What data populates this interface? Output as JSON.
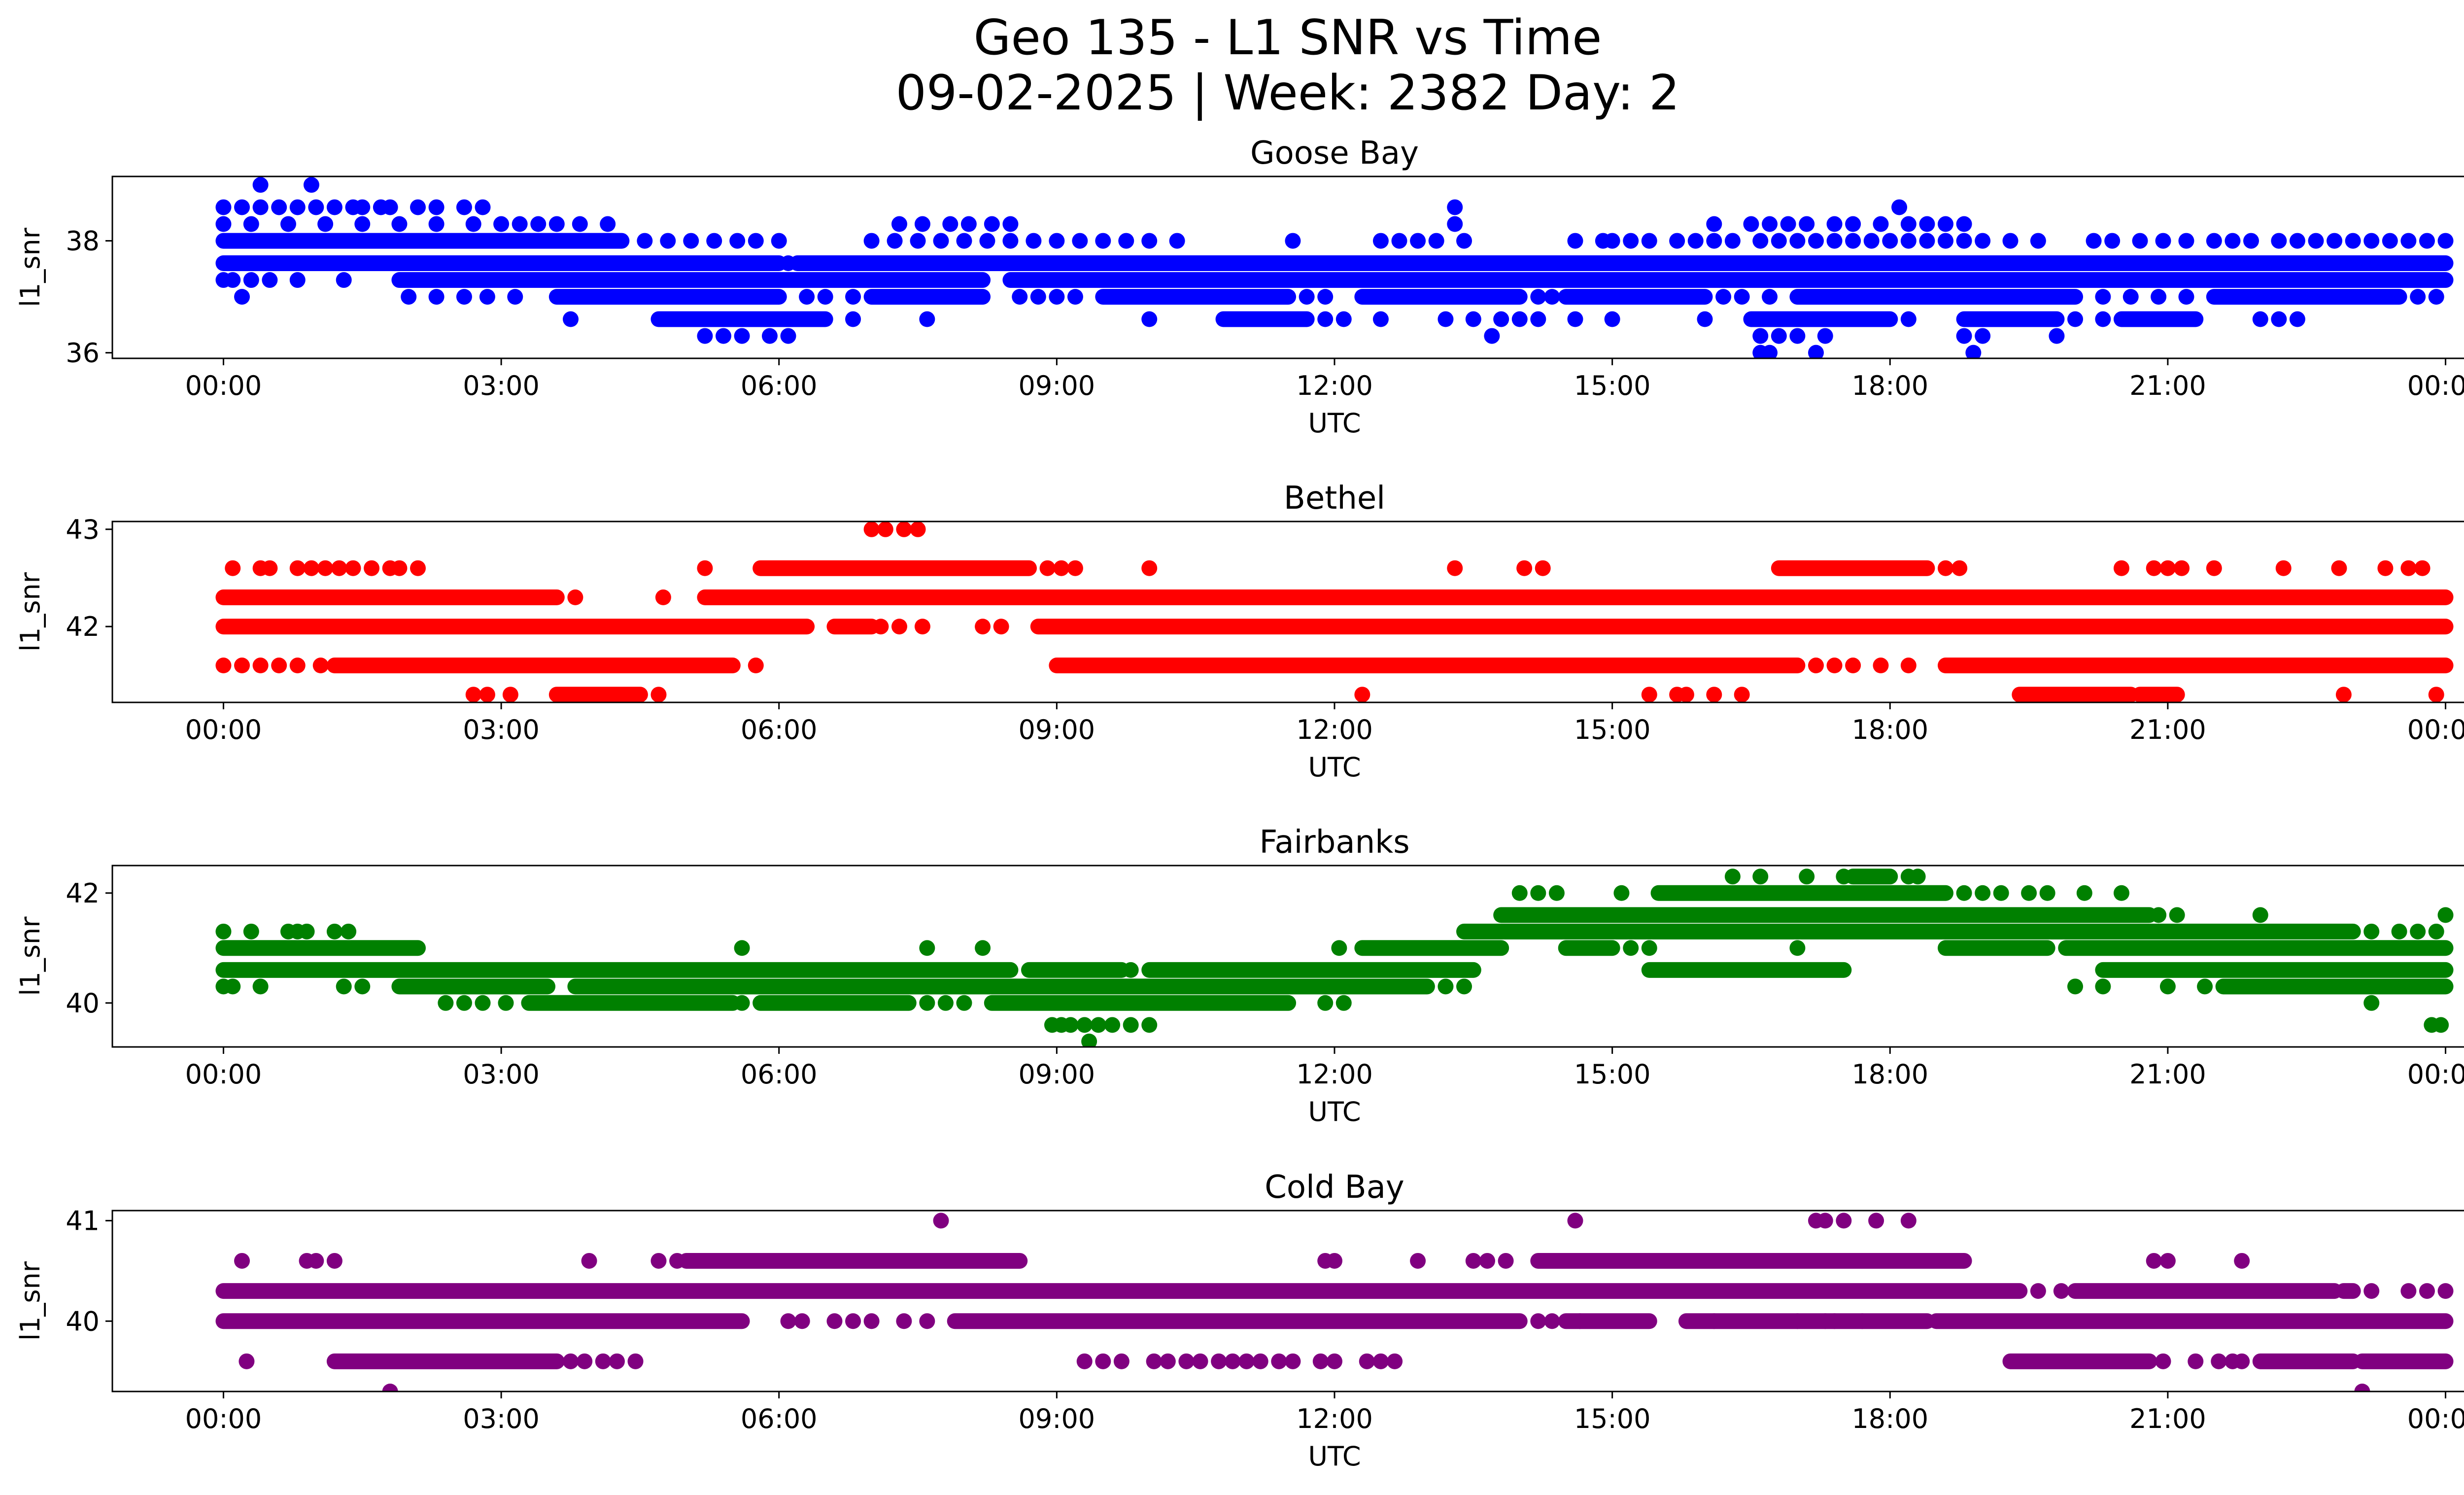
{
  "chart_data": {
    "type": "scatter",
    "title": "Geo 135 - L1 SNR vs Time",
    "subtitle": "09-02-2025 | Week: 2382 Day: 2",
    "xlabel": "UTC",
    "ylabel": "l1_snr",
    "x_unit": "hours",
    "xlim": [
      -1.2,
      25.2
    ],
    "xticks": [
      0,
      3,
      6,
      9,
      12,
      15,
      18,
      21,
      24
    ],
    "xtick_labels": [
      "00:00",
      "03:00",
      "06:00",
      "09:00",
      "12:00",
      "15:00",
      "18:00",
      "21:00",
      "00:00"
    ],
    "panels": [
      {
        "name": "Goose Bay",
        "color": "#0000ff",
        "ylim": [
          35.9,
          39.15
        ],
        "yticks": [
          36,
          38
        ],
        "series": [
          {
            "level": 39.0,
            "points": [
              0.4,
              0.95
            ]
          },
          {
            "level": 38.6,
            "points": [
              0.0,
              0.2,
              0.4,
              0.6,
              0.8,
              1.0,
              1.2,
              1.4,
              1.5,
              1.7,
              1.8,
              2.1,
              2.3,
              2.6,
              2.8,
              13.3,
              18.1
            ]
          },
          {
            "level": 38.3,
            "points": [
              0.0,
              0.3,
              0.7,
              1.1,
              1.5,
              1.9,
              2.3,
              2.7,
              3.0,
              3.2,
              3.4,
              3.6,
              3.85,
              4.15,
              7.3,
              7.55,
              7.85,
              8.05,
              8.3,
              8.5,
              13.3,
              16.1,
              16.5,
              16.7,
              16.9,
              17.1,
              17.4,
              17.6,
              17.9,
              18.2,
              18.4,
              18.6,
              18.8
            ]
          },
          {
            "level": 38.0,
            "ranges": [
              [
                0.0,
                4.3
              ]
            ],
            "points": [
              4.55,
              4.8,
              5.05,
              5.3,
              5.55,
              5.75,
              6.0,
              7.0,
              7.25,
              7.5,
              7.75,
              8.0,
              8.25,
              8.5,
              8.75,
              9.0,
              9.25,
              9.5,
              9.75,
              10.0,
              10.3,
              11.55,
              12.5,
              12.7,
              12.9,
              13.1,
              13.4,
              14.6,
              14.9,
              15.0,
              15.2,
              15.4,
              15.7,
              15.9,
              16.1,
              16.3,
              16.6,
              16.8,
              17.0,
              17.2,
              17.4,
              17.6,
              17.8,
              18.0,
              18.2,
              18.4,
              18.6,
              18.8,
              19.0,
              19.3,
              19.6,
              20.2,
              20.4,
              20.7,
              20.95,
              21.2,
              21.5,
              21.7,
              21.9,
              22.2,
              22.4,
              22.6,
              22.8,
              23.0,
              23.2,
              23.4,
              23.6,
              23.8,
              24.0
            ]
          },
          {
            "level": 37.6,
            "ranges": [
              [
                0.0,
                6.0
              ],
              [
                6.2,
                24.0
              ]
            ],
            "points": [
              6.1
            ]
          },
          {
            "level": 37.3,
            "ranges": [
              [
                1.9,
                8.2
              ],
              [
                8.5,
                24.0
              ]
            ],
            "points": [
              0.0,
              0.1,
              0.3,
              0.5,
              0.8,
              1.3
            ]
          },
          {
            "level": 37.0,
            "ranges": [
              [
                3.6,
                6.0
              ],
              [
                7.0,
                8.2
              ],
              [
                9.5,
                11.5
              ],
              [
                12.3,
                14.0
              ],
              [
                14.5,
                16.0
              ],
              [
                17.0,
                20.0
              ],
              [
                21.5,
                23.5
              ]
            ],
            "points": [
              0.2,
              2.0,
              2.3,
              2.6,
              2.85,
              3.15,
              6.3,
              6.5,
              6.8,
              8.6,
              8.8,
              9.0,
              9.2,
              11.7,
              11.9,
              14.2,
              14.35,
              16.2,
              16.4,
              16.7,
              20.3,
              20.6,
              20.9,
              21.2,
              23.7,
              23.9
            ]
          },
          {
            "level": 36.6,
            "ranges": [
              [
                4.7,
                6.5
              ],
              [
                10.8,
                11.7
              ],
              [
                16.5,
                18.0
              ],
              [
                18.8,
                19.8
              ],
              [
                20.5,
                21.3
              ]
            ],
            "points": [
              3.75,
              6.8,
              7.6,
              10.0,
              11.9,
              12.1,
              12.5,
              13.2,
              13.5,
              13.8,
              14.0,
              14.2,
              14.6,
              15.0,
              16.0,
              18.2,
              20.0,
              20.3,
              22.0,
              22.2,
              22.4
            ]
          },
          {
            "level": 36.3,
            "points": [
              5.2,
              5.4,
              5.6,
              5.9,
              6.1,
              13.7,
              16.6,
              16.8,
              17.0,
              17.3,
              18.8,
              19.0,
              19.8
            ]
          },
          {
            "level": 36.0,
            "points": [
              16.6,
              16.7,
              17.2,
              18.9
            ]
          }
        ]
      },
      {
        "name": "Bethel",
        "color": "#ff0000",
        "ylim": [
          41.22,
          43.08
        ],
        "yticks": [
          42,
          43
        ],
        "series": [
          {
            "level": 43.0,
            "points": [
              7.0,
              7.15,
              7.35,
              7.5
            ]
          },
          {
            "level": 42.6,
            "ranges": [
              [
                5.8,
                8.7
              ],
              [
                16.8,
                18.4
              ]
            ],
            "points": [
              0.1,
              0.4,
              0.5,
              0.8,
              0.95,
              1.1,
              1.25,
              1.4,
              1.6,
              1.8,
              1.9,
              2.1,
              5.2,
              8.9,
              9.05,
              9.2,
              10.0,
              13.3,
              14.05,
              14.25,
              18.6,
              18.75,
              20.5,
              20.85,
              21.0,
              21.15,
              21.5,
              22.25,
              22.85,
              23.35,
              23.6,
              23.75
            ]
          },
          {
            "level": 42.3,
            "ranges": [
              [
                0.0,
                3.6
              ],
              [
                5.2,
                24.0
              ]
            ],
            "points": [
              3.8,
              4.75
            ]
          },
          {
            "level": 42.0,
            "ranges": [
              [
                0.0,
                6.3
              ],
              [
                6.6,
                7.0
              ],
              [
                8.8,
                24.0
              ]
            ],
            "points": [
              7.1,
              7.3,
              7.55,
              8.2,
              8.4
            ]
          },
          {
            "level": 41.6,
            "ranges": [
              [
                1.2,
                5.5
              ],
              [
                9.0,
                17.0
              ],
              [
                18.6,
                24.0
              ]
            ],
            "points": [
              0.0,
              0.2,
              0.4,
              0.6,
              0.8,
              1.05,
              5.75,
              17.2,
              17.4,
              17.6,
              17.9,
              18.2
            ]
          },
          {
            "level": 41.3,
            "ranges": [
              [
                3.6,
                4.5
              ],
              [
                19.4,
                20.6
              ],
              [
                20.7,
                21.1
              ]
            ],
            "points": [
              2.7,
              2.85,
              3.1,
              4.7,
              12.3,
              15.4,
              15.7,
              15.8,
              16.1,
              16.4,
              22.9,
              23.9
            ]
          }
        ]
      },
      {
        "name": "Fairbanks",
        "color": "#008000",
        "ylim": [
          39.2,
          42.5
        ],
        "yticks": [
          40,
          42
        ],
        "series": [
          {
            "level": 42.3,
            "ranges": [
              [
                17.6,
                18.0
              ]
            ],
            "points": [
              16.3,
              16.6,
              17.1,
              17.5,
              18.2,
              18.3
            ]
          },
          {
            "level": 42.0,
            "ranges": [
              [
                15.5,
                18.6
              ]
            ],
            "points": [
              14.0,
              14.2,
              14.4,
              15.1,
              18.8,
              19.0,
              19.2,
              19.5,
              19.7,
              20.1,
              20.5
            ]
          },
          {
            "level": 41.6,
            "ranges": [
              [
                13.8,
                20.8
              ]
            ],
            "points": [
              20.9,
              21.1,
              22.0,
              24.0
            ]
          },
          {
            "level": 41.3,
            "ranges": [
              [
                13.4,
                23.0
              ]
            ],
            "points": [
              0.0,
              0.3,
              0.7,
              0.8,
              0.9,
              1.2,
              1.35,
              23.2,
              23.5,
              23.7,
              23.9
            ]
          },
          {
            "level": 41.0,
            "ranges": [
              [
                0.0,
                2.1
              ],
              [
                12.3,
                13.8
              ],
              [
                14.5,
                15.0
              ],
              [
                18.6,
                19.7
              ],
              [
                19.9,
                24.0
              ]
            ],
            "points": [
              5.6,
              7.6,
              8.2,
              12.05,
              15.2,
              15.4,
              17.0
            ]
          },
          {
            "level": 40.6,
            "ranges": [
              [
                0.0,
                8.5
              ],
              [
                8.7,
                9.7
              ],
              [
                10.0,
                13.5
              ],
              [
                15.4,
                17.5
              ],
              [
                20.3,
                24.0
              ]
            ],
            "points": [
              9.8
            ]
          },
          {
            "level": 40.3,
            "ranges": [
              [
                1.9,
                3.5
              ],
              [
                3.8,
                13.0
              ],
              [
                21.6,
                24.0
              ]
            ],
            "points": [
              0.0,
              0.1,
              0.4,
              1.3,
              1.5,
              13.2,
              13.4,
              20.0,
              20.3,
              21.0,
              21.4
            ]
          },
          {
            "level": 40.0,
            "ranges": [
              [
                3.3,
                5.5
              ],
              [
                5.8,
                7.4
              ],
              [
                8.3,
                11.5
              ]
            ],
            "points": [
              2.4,
              2.6,
              2.8,
              3.05,
              5.6,
              7.6,
              7.8,
              8.0,
              11.9,
              12.1,
              23.2
            ]
          },
          {
            "level": 39.6,
            "points": [
              8.95,
              9.05,
              9.15,
              9.3,
              9.45,
              9.6,
              9.8,
              10.0,
              23.85,
              23.95
            ]
          },
          {
            "level": 39.3,
            "points": [
              9.35
            ]
          }
        ]
      },
      {
        "name": "Cold Bay",
        "color": "#800080",
        "ylim": [
          39.3,
          41.1
        ],
        "yticks": [
          40,
          41
        ],
        "series": [
          {
            "level": 41.0,
            "points": [
              7.75,
              14.6,
              17.2,
              17.3,
              17.5,
              17.85,
              18.2
            ]
          },
          {
            "level": 40.6,
            "ranges": [
              [
                5.0,
                8.6
              ],
              [
                14.2,
                18.8
              ]
            ],
            "points": [
              0.2,
              0.9,
              1.0,
              1.2,
              3.95,
              4.7,
              4.9,
              11.9,
              12.0,
              12.9,
              13.5,
              13.65,
              13.85,
              20.85,
              21.0,
              21.8
            ]
          },
          {
            "level": 40.3,
            "ranges": [
              [
                0.0,
                19.4
              ],
              [
                20.0,
                22.8
              ],
              [
                22.9,
                23.0
              ]
            ],
            "points": [
              19.6,
              19.85,
              23.2,
              23.6,
              23.8,
              24.0
            ]
          },
          {
            "level": 40.0,
            "ranges": [
              [
                0.0,
                5.6
              ],
              [
                7.9,
                14.0
              ],
              [
                14.5,
                15.4
              ],
              [
                15.8,
                18.4
              ],
              [
                18.5,
                24.0
              ]
            ],
            "points": [
              6.1,
              6.25,
              6.6,
              6.8,
              7.0,
              7.35,
              7.6,
              14.2,
              14.35,
              14.65,
              16.1,
              17.0,
              17.3,
              17.4,
              17.7
            ]
          },
          {
            "level": 39.6,
            "ranges": [
              [
                1.2,
                3.6
              ],
              [
                19.3,
                20.8
              ],
              [
                22.0,
                23.0
              ],
              [
                23.1,
                24.0
              ]
            ],
            "points": [
              0.25,
              3.75,
              3.9,
              4.1,
              4.25,
              4.45,
              9.3,
              9.5,
              9.7,
              10.05,
              10.2,
              10.4,
              10.55,
              10.75,
              10.9,
              11.05,
              11.2,
              11.4,
              11.55,
              11.85,
              12.0,
              12.35,
              12.5,
              12.65,
              20.95,
              21.3,
              21.55,
              21.7,
              21.8
            ]
          },
          {
            "level": 39.3,
            "points": [
              1.8,
              23.1
            ]
          }
        ]
      }
    ]
  }
}
